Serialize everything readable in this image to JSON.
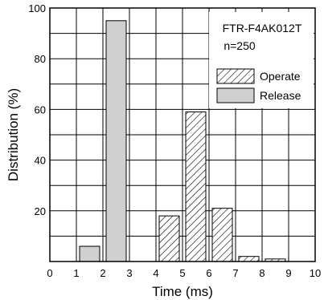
{
  "chart_data": {
    "type": "bar",
    "xlabel": "Time (ms)",
    "ylabel": "Distribution (%)",
    "xlim": [
      0,
      10
    ],
    "ylim": [
      0,
      100
    ],
    "x_ticks": [
      "0",
      "1",
      "2",
      "3",
      "4",
      "5",
      "6",
      "7",
      "8",
      "9",
      "10"
    ],
    "y_ticks": [
      "20",
      "40",
      "60",
      "80",
      "100"
    ],
    "grid": true,
    "annotation": [
      "FTR-F4AK012T",
      "n=250"
    ],
    "legend_position": "top-right",
    "series": [
      {
        "name": "Operate",
        "pattern": "hatched",
        "bins": [
          {
            "start": 4,
            "end": 5,
            "value": 18
          },
          {
            "start": 5,
            "end": 6,
            "value": 59
          },
          {
            "start": 6,
            "end": 7,
            "value": 21
          },
          {
            "start": 7,
            "end": 8,
            "value": 2
          },
          {
            "start": 8,
            "end": 9,
            "value": 1
          }
        ]
      },
      {
        "name": "Release",
        "pattern": "solid",
        "color": "#d0d0d0",
        "bins": [
          {
            "start": 1,
            "end": 2,
            "value": 6
          },
          {
            "start": 2,
            "end": 3,
            "value": 95
          }
        ]
      }
    ]
  }
}
